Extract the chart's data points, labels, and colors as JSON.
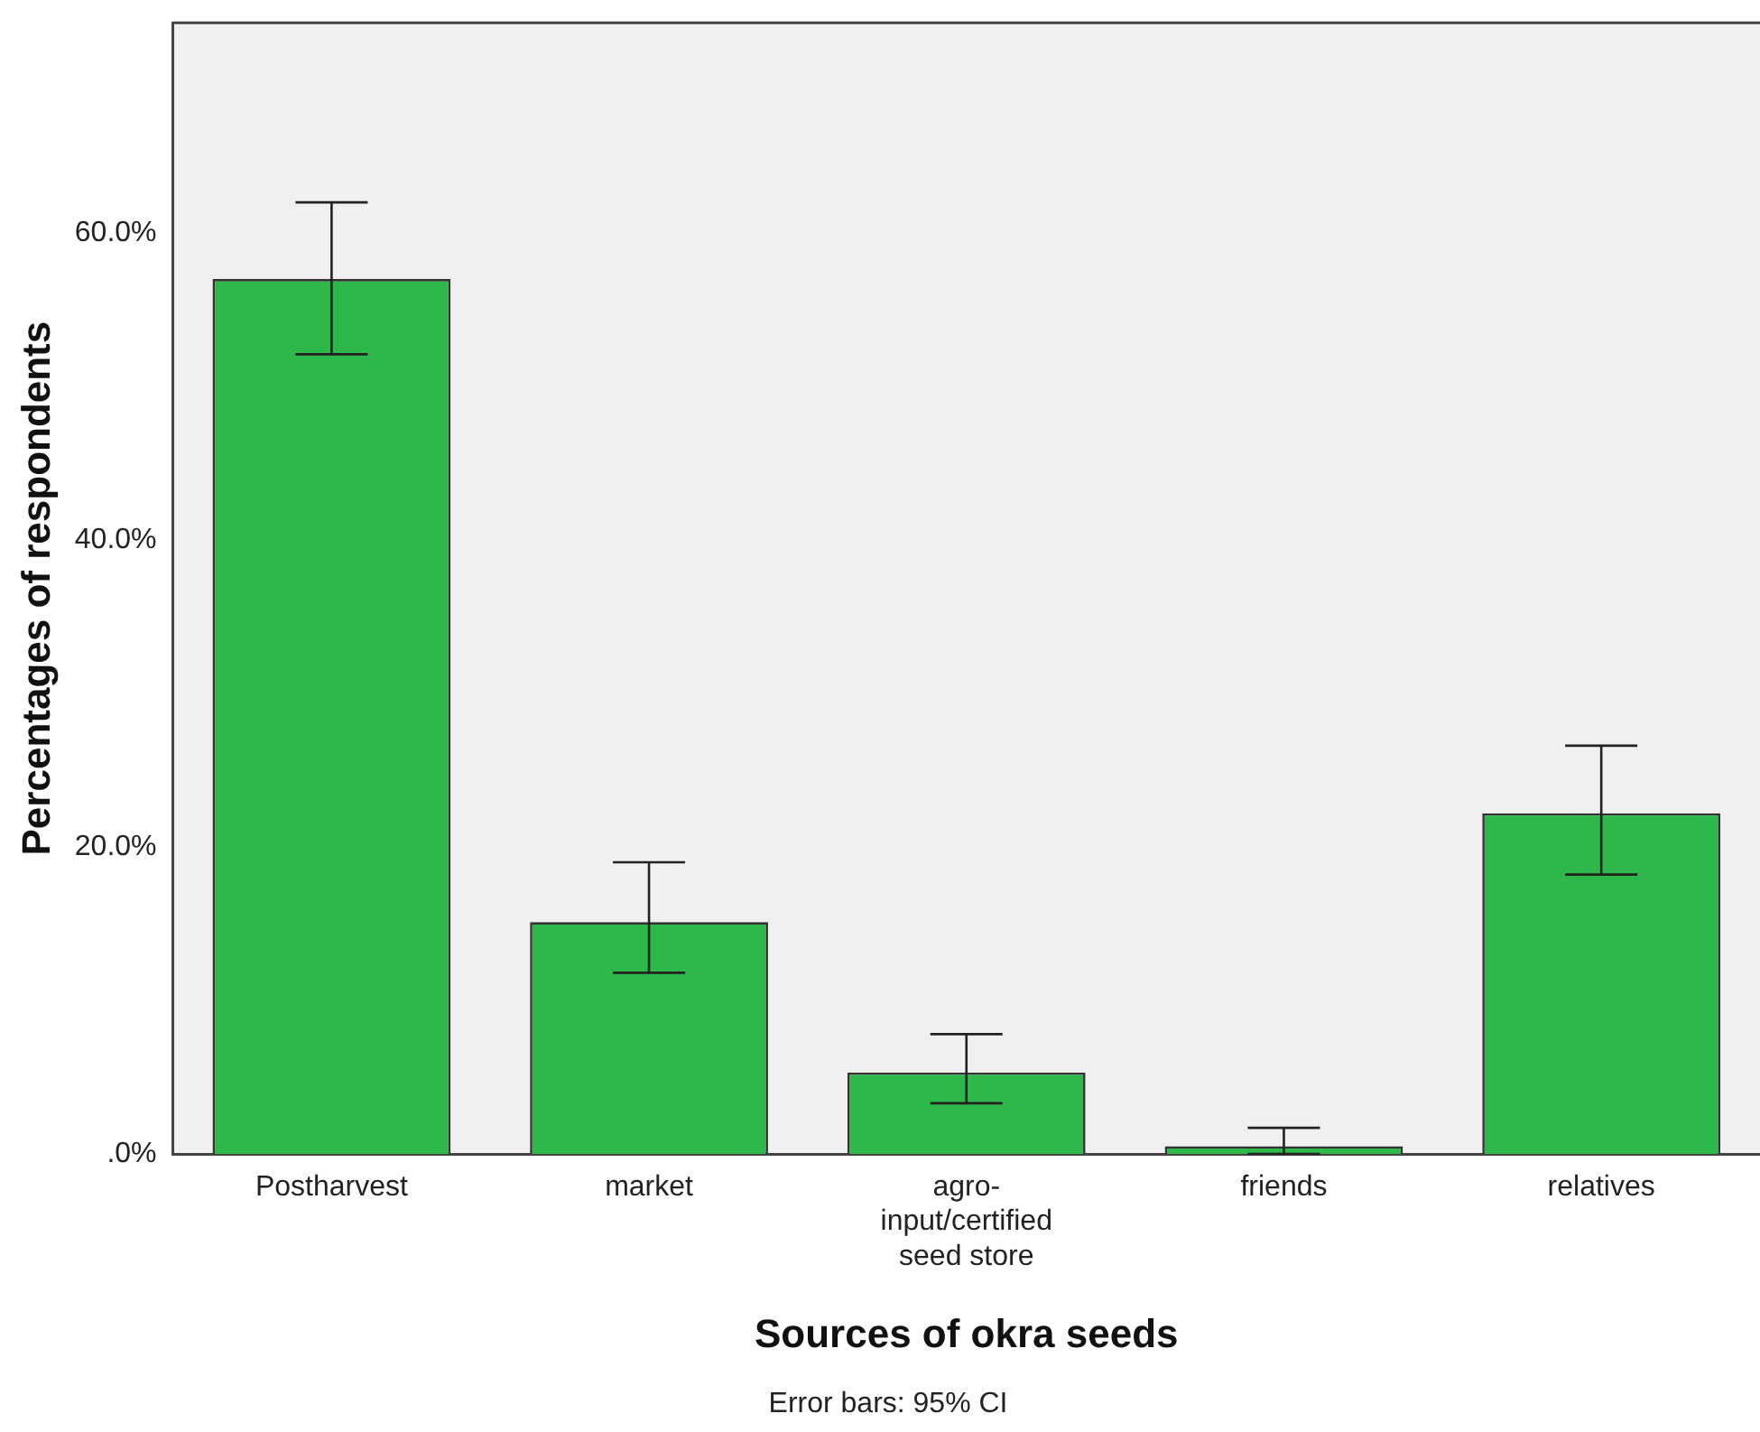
{
  "chart_data": {
    "type": "bar",
    "xlabel": "Sources of okra seeds",
    "ylabel": "Percentages of respondents",
    "categories": [
      "Postharvest",
      "market",
      "agro-input/certified seed store",
      "friends",
      "relatives"
    ],
    "values": [
      57.0,
      15.1,
      5.3,
      0.5,
      22.2
    ],
    "errors": [
      [
        52.1,
        62.0
      ],
      [
        11.8,
        19.0
      ],
      [
        3.3,
        7.8
      ],
      [
        0,
        1.7
      ],
      [
        18.2,
        26.6
      ]
    ],
    "color": "#2eb84a",
    "ylim": [
      0,
      73.7
    ],
    "yticks": [
      {
        "value": 0,
        "label": ".0%"
      },
      {
        "value": 20,
        "label": "20.0%"
      },
      {
        "value": 40,
        "label": "40.0%"
      },
      {
        "value": 60,
        "label": "60.0%"
      }
    ],
    "grid": false,
    "annotations": [
      "Error bars: 95% CI"
    ]
  }
}
